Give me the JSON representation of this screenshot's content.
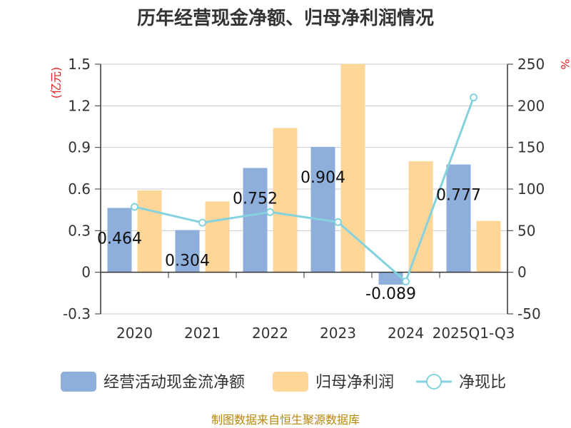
{
  "chart_data": {
    "type": "bar",
    "title": "历年经营现金净额、归母净利润情况",
    "categories": [
      "2020",
      "2021",
      "2022",
      "2023",
      "2024",
      "2025Q1-Q3"
    ],
    "left_axis": {
      "unit": "(亿元)",
      "ylim": [
        -0.3,
        1.5
      ],
      "ticks": [
        "1.5",
        "1.2",
        "0.9",
        "0.6",
        "0.3",
        "0",
        "-0.3"
      ],
      "tick_values": [
        1.5,
        1.2,
        0.9,
        0.6,
        0.3,
        0,
        -0.3
      ]
    },
    "right_axis": {
      "unit": "%",
      "ylim": [
        -50,
        250
      ],
      "ticks": [
        "250",
        "200",
        "150",
        "100",
        "50",
        "0",
        "-50"
      ],
      "tick_values": [
        250,
        200,
        150,
        100,
        50,
        0,
        -50
      ]
    },
    "series": [
      {
        "name": "经营活动现金流净额",
        "type": "bar",
        "axis": "left",
        "color": "#8eaedc",
        "values": [
          0.464,
          0.304,
          0.752,
          0.904,
          -0.089,
          0.777
        ],
        "labels": [
          "0.464",
          "0.304",
          "0.752",
          "0.904",
          "-0.089",
          "0.777"
        ]
      },
      {
        "name": "归母净利润",
        "type": "bar",
        "axis": "left",
        "color": "#fed698",
        "values": [
          0.59,
          0.51,
          1.04,
          1.5,
          0.8,
          0.37
        ]
      },
      {
        "name": "净现比",
        "type": "line",
        "axis": "right",
        "color": "#84d2dd",
        "values": [
          78.6,
          59.6,
          72.3,
          60.3,
          -11.1,
          210
        ]
      }
    ]
  },
  "source": "制图数据来自恒生聚源数据库"
}
